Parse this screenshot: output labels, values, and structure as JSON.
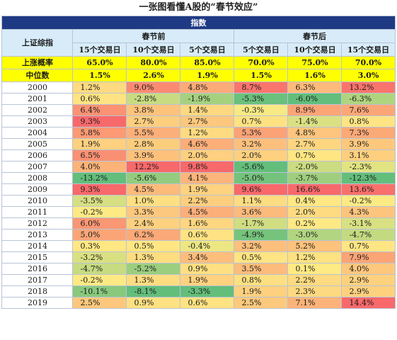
{
  "title": "一张图看懂A股的“春节效应”",
  "chart_data": {
    "type": "table",
    "index_header": "指数",
    "row_header": "上证综指",
    "groups": [
      "春节前",
      "春节后"
    ],
    "windows": [
      "15个交易日",
      "10个交易日",
      "5个交易日",
      "5个交易日",
      "10个交易日",
      "15个交易日"
    ],
    "stats": [
      {
        "label": "上涨概率",
        "values": [
          "65.0%",
          "80.0%",
          "85.0%",
          "70.0%",
          "75.0%",
          "70.0%"
        ]
      },
      {
        "label": "中位数",
        "values": [
          "1.5%",
          "2.6%",
          "1.9%",
          "1.5%",
          "1.6%",
          "3.0%"
        ]
      }
    ],
    "rows": [
      {
        "year": "2000",
        "values": [
          1.2,
          9.0,
          4.8,
          8.7,
          6.3,
          13.2
        ]
      },
      {
        "year": "2001",
        "values": [
          0.6,
          -2.8,
          -1.9,
          -5.3,
          -6.0,
          -6.3
        ]
      },
      {
        "year": "2002",
        "values": [
          6.4,
          3.8,
          1.4,
          -0.3,
          8.9,
          7.6
        ]
      },
      {
        "year": "2003",
        "values": [
          9.3,
          2.7,
          2.7,
          0.7,
          -1.4,
          0.8
        ]
      },
      {
        "year": "2004",
        "values": [
          5.8,
          5.5,
          1.2,
          5.3,
          4.8,
          7.3
        ]
      },
      {
        "year": "2005",
        "values": [
          1.9,
          2.8,
          4.6,
          3.2,
          2.7,
          3.9
        ]
      },
      {
        "year": "2006",
        "values": [
          6.5,
          3.9,
          2.0,
          2.0,
          0.7,
          3.1
        ]
      },
      {
        "year": "2007",
        "values": [
          4.0,
          12.2,
          9.8,
          -5.6,
          -2.0,
          -2.3
        ]
      },
      {
        "year": "2008",
        "values": [
          -13.2,
          -5.6,
          4.1,
          -5.0,
          -3.7,
          -12.3
        ]
      },
      {
        "year": "2009",
        "values": [
          9.3,
          4.5,
          1.9,
          9.6,
          16.6,
          13.6
        ]
      },
      {
        "year": "2010",
        "values": [
          -3.5,
          1.0,
          2.2,
          1.1,
          0.4,
          -0.2
        ]
      },
      {
        "year": "2011",
        "values": [
          -0.2,
          3.3,
          4.5,
          3.6,
          2.0,
          4.3
        ]
      },
      {
        "year": "2012",
        "values": [
          6.0,
          2.4,
          1.6,
          -1.7,
          0.2,
          -3.1
        ]
      },
      {
        "year": "2013",
        "values": [
          5.0,
          6.2,
          0.6,
          -4.9,
          -3.0,
          -4.7
        ]
      },
      {
        "year": "2014",
        "values": [
          0.3,
          0.5,
          -0.4,
          3.2,
          5.2,
          0.7
        ]
      },
      {
        "year": "2015",
        "values": [
          -3.2,
          1.3,
          3.4,
          0.5,
          1.2,
          7.9
        ]
      },
      {
        "year": "2016",
        "values": [
          -4.7,
          -5.2,
          0.9,
          3.5,
          0.1,
          4.0
        ]
      },
      {
        "year": "2017",
        "values": [
          -0.2,
          1.3,
          1.9,
          0.8,
          2.2,
          2.9
        ]
      },
      {
        "year": "2018",
        "values": [
          -10.1,
          -8.1,
          -3.3,
          1.9,
          2.3,
          2.9
        ]
      },
      {
        "year": "2019",
        "values": [
          2.5,
          0.9,
          0.6,
          2.5,
          7.1,
          14.4
        ]
      }
    ],
    "value_unit": "%",
    "colors": {
      "header_bg": "#1f3a84",
      "subheader_bg": "#d7ecf8",
      "stat_bg": "#ffff00",
      "scale_low": "#63be7b",
      "scale_mid": "#ffeb84",
      "scale_high": "#f8696b"
    }
  }
}
